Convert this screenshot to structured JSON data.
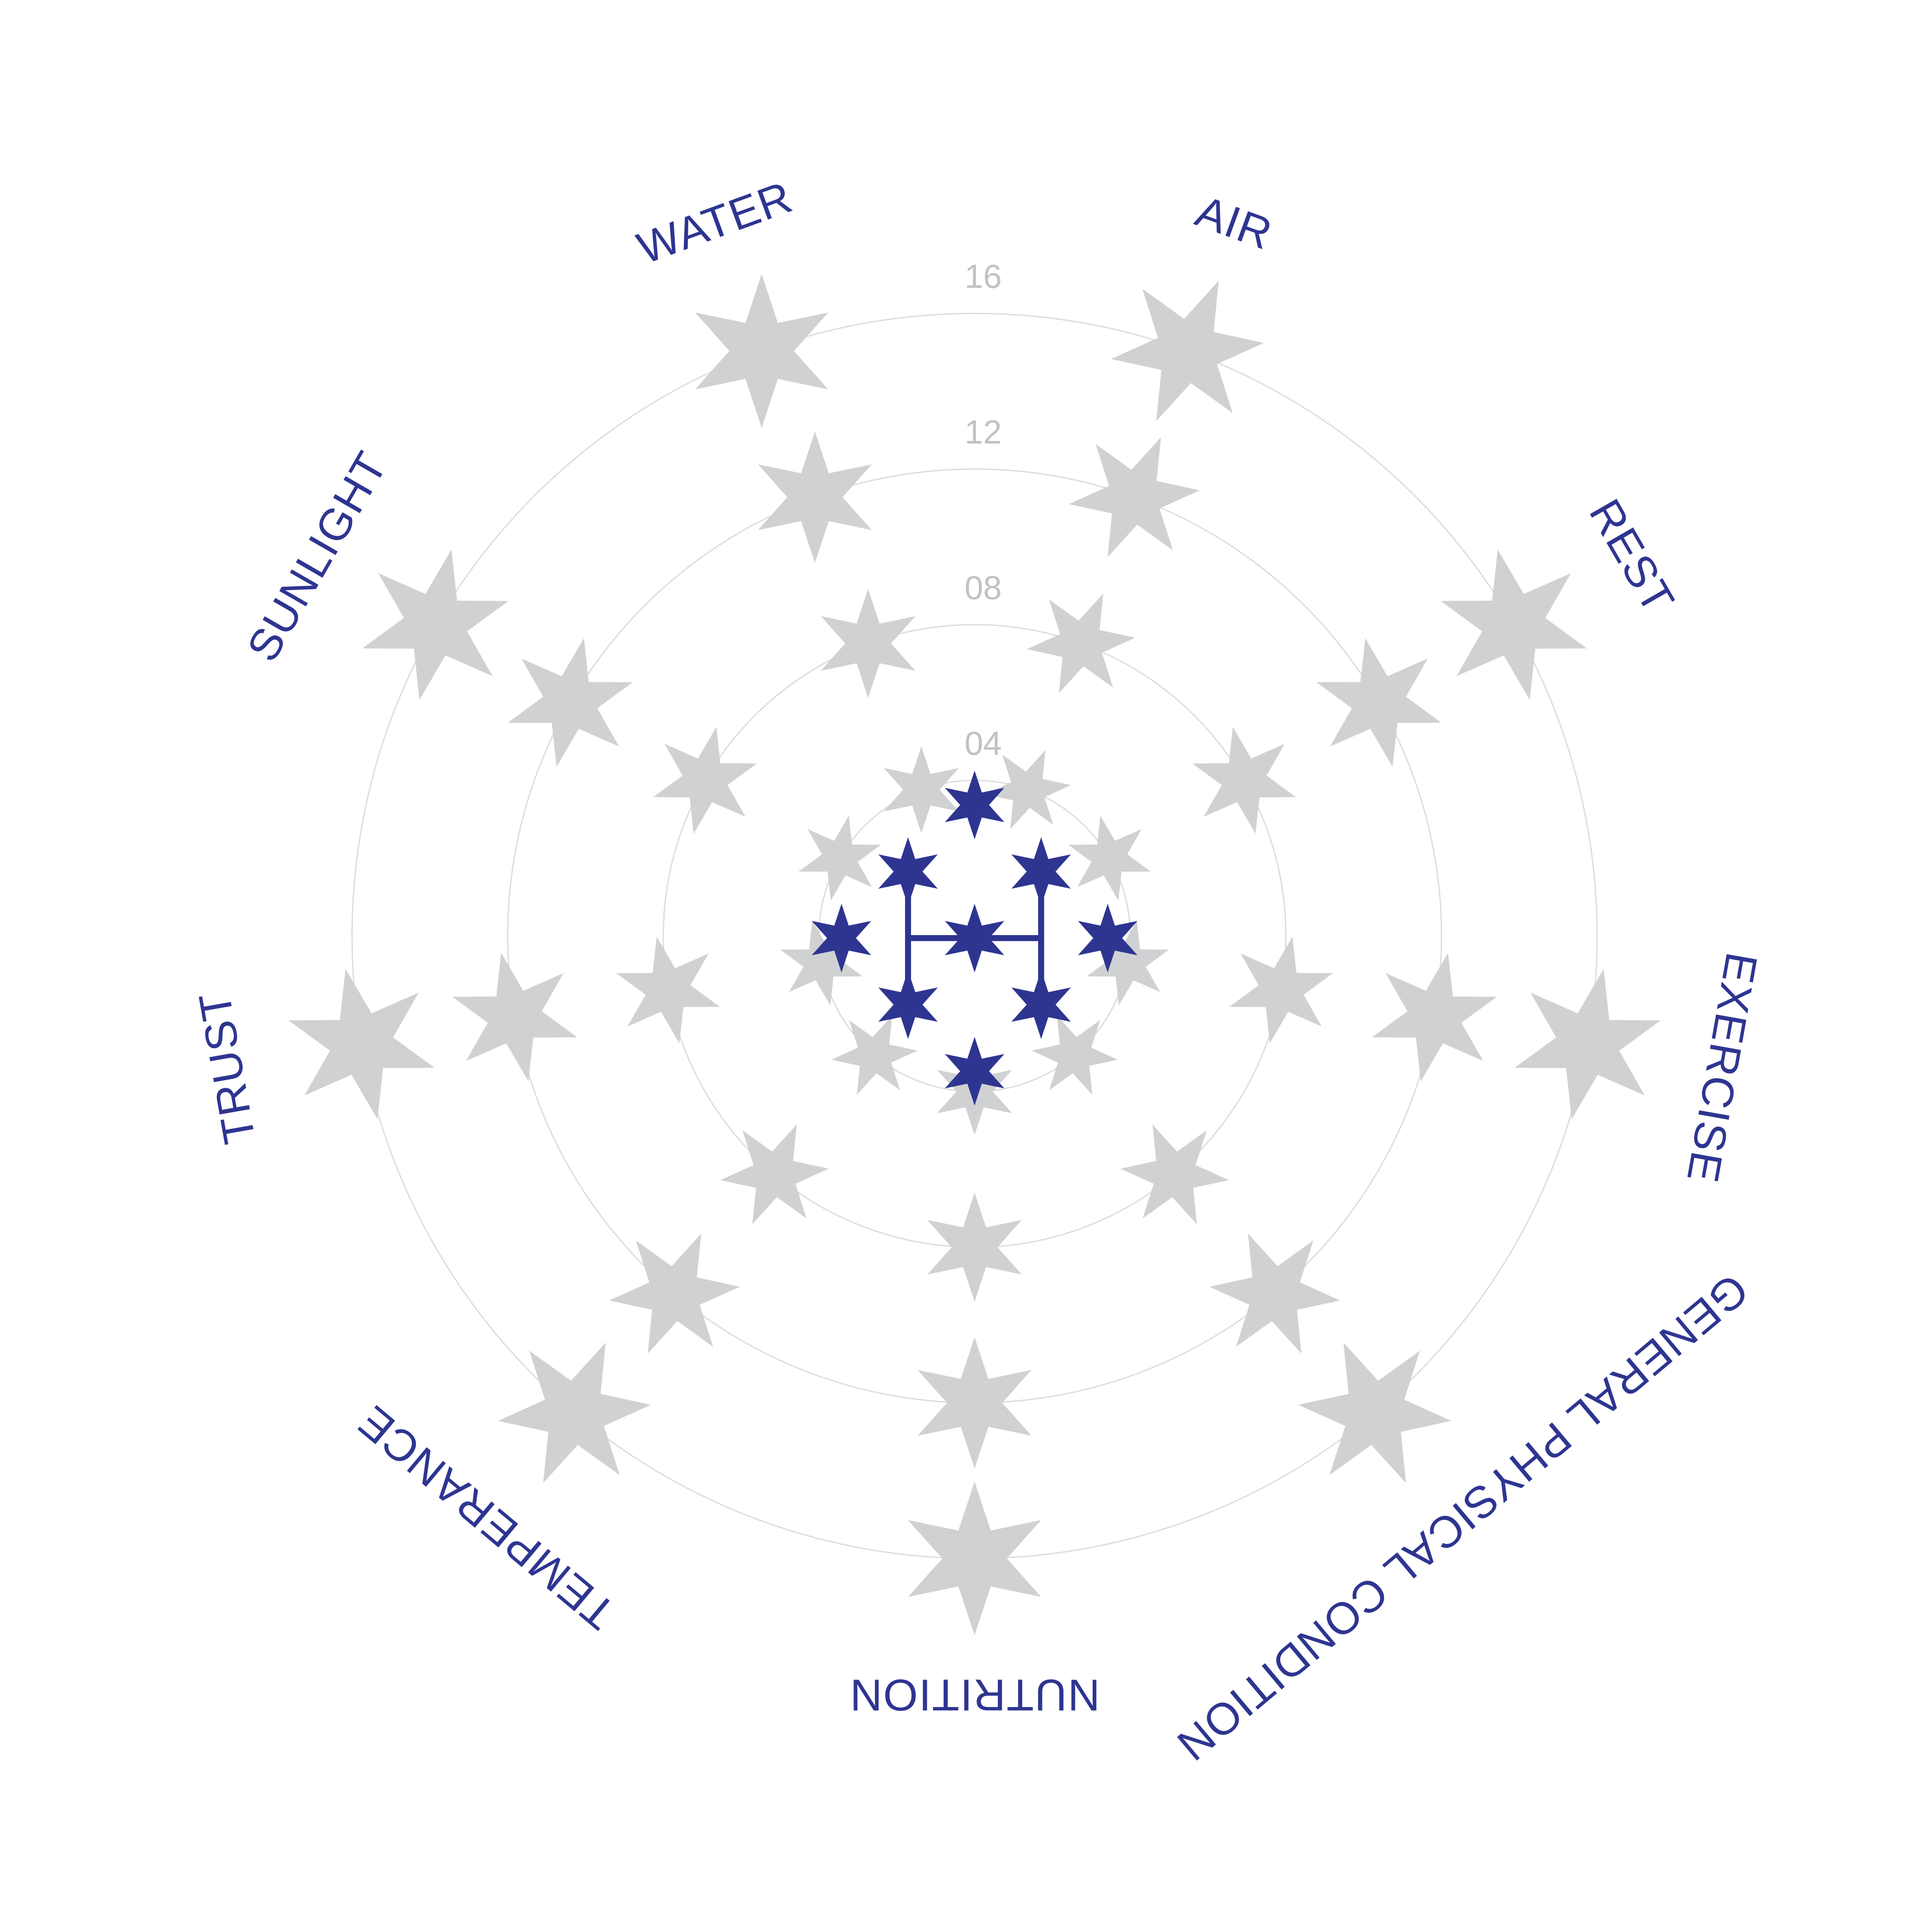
{
  "chart_data": {
    "type": "radial-star-chart",
    "ring_levels": [
      4,
      8,
      12,
      16
    ],
    "ring_labels": [
      "04",
      "08",
      "12",
      "16"
    ],
    "categories": [
      "WATER",
      "AIR",
      "REST",
      "EXERCISE",
      "GENERAL PHYSICAL CONDITION",
      "NUTRITION",
      "TEMPERANCE",
      "TRUST",
      "SUNLIGHT"
    ],
    "marker_levels": [
      4,
      8,
      12,
      16
    ],
    "colors": {
      "ring": "#dcdcdc",
      "ring_label": "#c2c2c2",
      "marker": "#d0d1d3",
      "category_label": "#2e3591",
      "logo": "#2e3591"
    },
    "grid": true,
    "legend": "none"
  },
  "logo": {
    "icon": "star-cluster-logo",
    "color": "#2e3591"
  }
}
